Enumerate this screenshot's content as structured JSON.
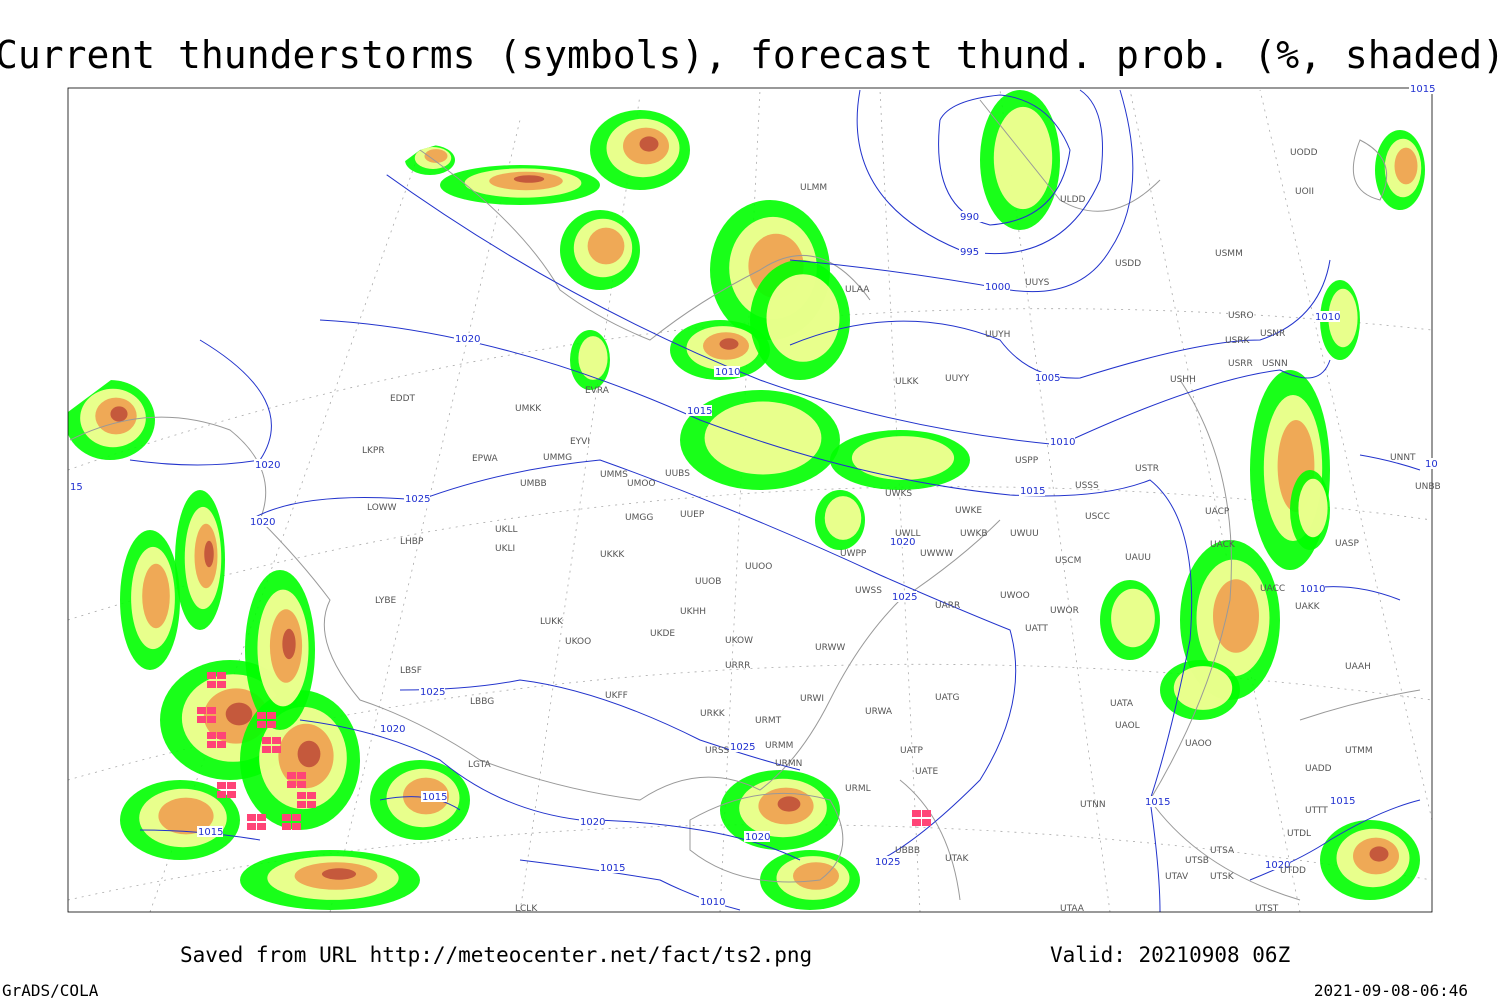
{
  "header": {
    "title": "Current thunderstorms (symbols), forecast thund. prob. (%, shaded)"
  },
  "footer": {
    "saved": "Saved from URL http://meteocenter.net/fact/ts2.png",
    "valid": "Valid: 20210908 06Z",
    "software": "GrADS/COLA",
    "timestamp": "2021-09-08-06:46"
  },
  "isobar_labels": [
    "1015",
    "990",
    "995",
    "1000",
    "1010",
    "1005",
    "1020",
    "1010",
    "1015",
    "1010",
    "1015",
    "1020",
    "1025",
    "1020",
    "1020",
    "1025",
    "1010",
    "1025",
    "1020",
    "1025",
    "1015",
    "1015",
    "1015",
    "1015",
    "1020",
    "1020",
    "1025",
    "1015",
    "1020",
    "1010",
    "15",
    "10"
  ],
  "stations": [
    "ULMM",
    "ULDD",
    "USDD",
    "USMM",
    "ULAA",
    "UUYS",
    "UUYH",
    "USRO",
    "USNR",
    "USRK",
    "USRR",
    "USNN",
    "USHH",
    "ULKK",
    "UUYY",
    "EDDT",
    "UMKK",
    "EVRA",
    "EYVI",
    "EPWA",
    "UMMG",
    "LKPR",
    "UMMS",
    "UMOO",
    "UUBS",
    "UMBB",
    "USPP",
    "USTR",
    "USSS",
    "UWKS",
    "UWKE",
    "USCC",
    "UACP",
    "LOWW",
    "UKLL",
    "UKLI",
    "UMGG",
    "UUEP",
    "LHBP",
    "UKKK",
    "UWLL",
    "UWKB",
    "UWUU",
    "UWWW",
    "UWPP",
    "USCM",
    "UAUU",
    "UACK",
    "UASP",
    "UUOO",
    "UUOB",
    "LYBE",
    "UWSS",
    "UARR",
    "UWOO",
    "UWOR",
    "UACC",
    "UAKK",
    "LUKK",
    "UKHH",
    "UKOO",
    "UKDE",
    "UKOW",
    "URWW",
    "UATT",
    "URRR",
    "LBSF",
    "UKFF",
    "URWI",
    "UATG",
    "UAAH",
    "LBBG",
    "URKK",
    "URMT",
    "URWA",
    "UATA",
    "UAOL",
    "UAOO",
    "URMM",
    "URSS",
    "UATP",
    "URMN",
    "LGTA",
    "UATE",
    "UTMM",
    "UADD",
    "URML",
    "UTNN",
    "UTTT",
    "UTDL",
    "UBBB",
    "UTAK",
    "UTSA",
    "UTSB",
    "UTDD",
    "UTAV",
    "UTSK",
    "UTAA",
    "UTST",
    "LCLK",
    "UODD",
    "UOII",
    "UNNT",
    "UNBB"
  ]
}
